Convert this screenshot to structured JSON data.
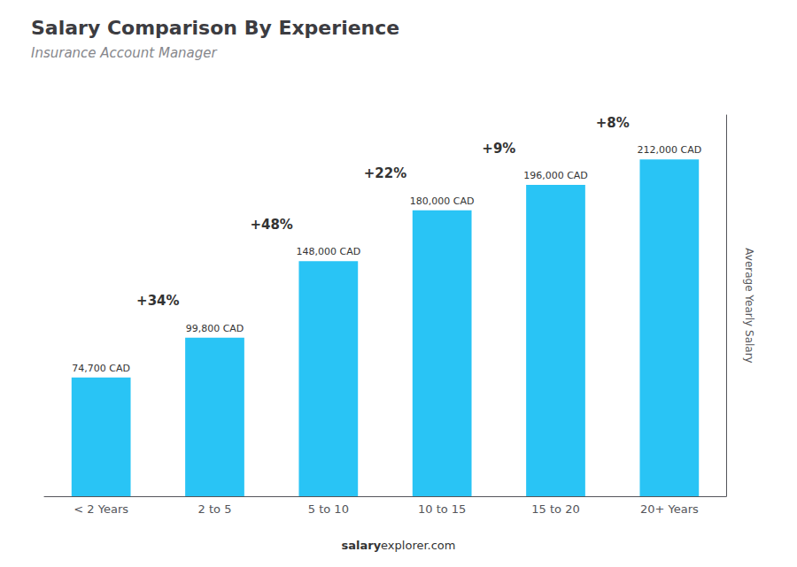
{
  "chart_data": {
    "type": "bar",
    "title": "Salary Comparison By Experience",
    "subtitle": "Insurance Account Manager",
    "categories": [
      "< 2 Years",
      "2 to 5",
      "5 to 10",
      "10 to 15",
      "15 to 20",
      "20+ Years"
    ],
    "values": [
      74700,
      99800,
      148000,
      180000,
      196000,
      212000
    ],
    "value_labels": [
      "74,700 CAD",
      "99,800 CAD",
      "148,000 CAD",
      "180,000 CAD",
      "196,000 CAD",
      "212,000 CAD"
    ],
    "data_labels": true,
    "color": "#29c4f5",
    "ylabel": "Average Yearly Salary",
    "ylim": [
      0,
      240000
    ],
    "tick_labels": "x",
    "grid": false,
    "annotations": [
      "+34%",
      "+48%",
      "+22%",
      "+9%",
      "+8%"
    ],
    "watermark": [
      "salary",
      "explorer.com"
    ]
  }
}
